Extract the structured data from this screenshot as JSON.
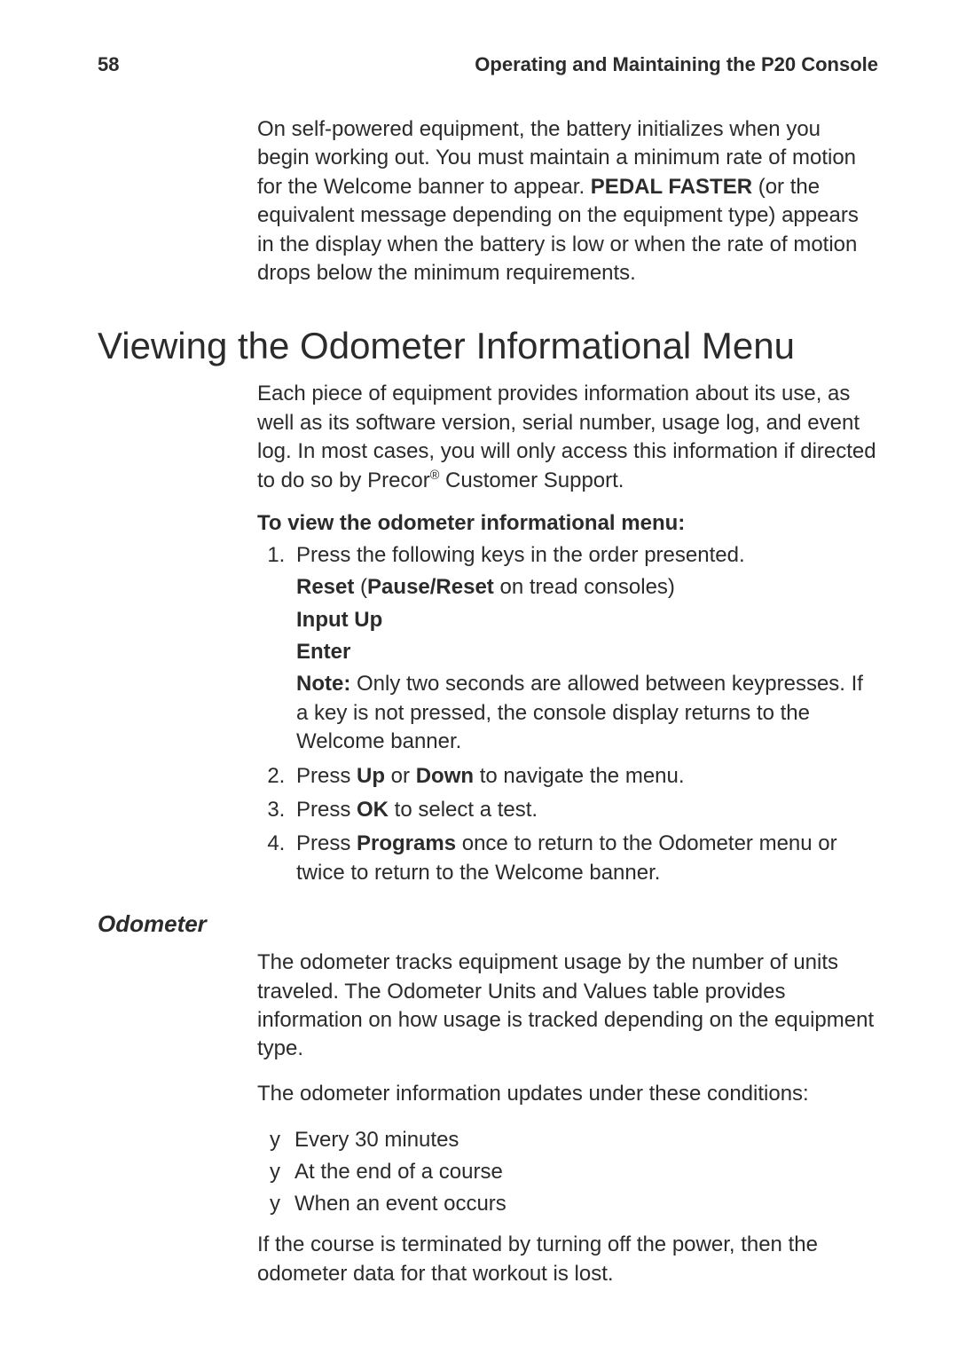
{
  "page_number": "58",
  "running_head": "Operating and Maintaining the P20 Console",
  "intro_1": "On self-powered equipment, the battery initializes when you begin working out. You must maintain a minimum rate of motion for the Welcome banner to appear. ",
  "intro_bold": "PEDAL FASTER",
  "intro_2": " (or the equivalent message depending on the equipment type) appears in the display when the battery is low or when the rate of motion drops below the minimum requirements.",
  "h1": "Viewing the Odometer Informational Menu",
  "para1a": "Each piece of equipment provides information about its use, as well as its software version, serial number, usage log, and event log. In most cases, you will only access this information if directed to do so by Precor",
  "para1b": " Customer Support.",
  "subhead": "To view the odometer informational menu:",
  "step1": "Press the following keys in the order presented.",
  "s1a_b1": "Reset",
  "s1a_mid": " (",
  "s1a_b2": "Pause/Reset",
  "s1a_end": " on tread consoles)",
  "s1b": "Input Up",
  "s1c": "Enter",
  "s1note_b": "Note:",
  "s1note": " Only two seconds are allowed between keypresses. If a key is not pressed, the console display returns to the Welcome banner.",
  "step2_a": "Press ",
  "step2_b1": "Up",
  "step2_mid": " or ",
  "step2_b2": "Down",
  "step2_c": " to navigate the menu.",
  "step3_a": "Press ",
  "step3_b": "OK",
  "step3_c": " to select a test.",
  "step4_a": "Press ",
  "step4_b": "Programs",
  "step4_c": " once to return to the Odometer menu or twice to return to the Welcome banner.",
  "side": "Odometer",
  "od1": "The odometer tracks equipment usage by the number of units traveled. The Odometer Units and Values table provides information on how usage is tracked depending on the equipment type.",
  "od2": "The odometer information updates under these conditions:",
  "b1": "Every 30 minutes",
  "b2": "At the end of a course",
  "b3": "When an event occurs",
  "od3": "If the course is terminated by turning off the power, then the odometer data for that workout is lost."
}
